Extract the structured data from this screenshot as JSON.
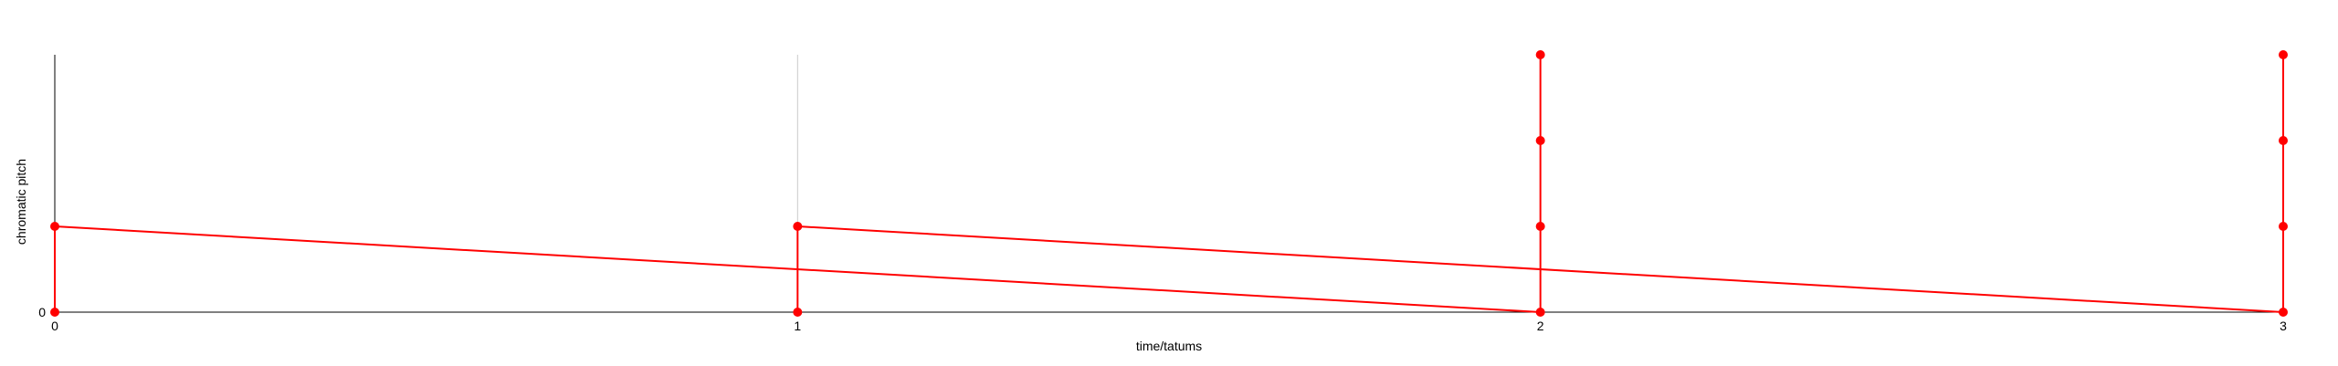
{
  "chart_data": {
    "type": "scatter",
    "title": "",
    "xlabel": "time/tatums",
    "ylabel": "chromatic pitch",
    "x_ticks": [
      "0",
      "1",
      "2",
      "3"
    ],
    "y_ticks": [
      "0"
    ],
    "xlim": [
      0,
      3
    ],
    "ylim": [
      0,
      3
    ],
    "grid": true,
    "points": [
      {
        "x": 0,
        "y": 0
      },
      {
        "x": 0,
        "y": 1
      },
      {
        "x": 1,
        "y": 0
      },
      {
        "x": 1,
        "y": 1
      },
      {
        "x": 2,
        "y": 0
      },
      {
        "x": 2,
        "y": 1
      },
      {
        "x": 2,
        "y": 2
      },
      {
        "x": 2,
        "y": 3
      },
      {
        "x": 3,
        "y": 0
      },
      {
        "x": 3,
        "y": 1
      },
      {
        "x": 3,
        "y": 2
      },
      {
        "x": 3,
        "y": 3
      }
    ],
    "segments": [
      {
        "from": [
          0,
          0
        ],
        "to": [
          0,
          1
        ]
      },
      {
        "from": [
          0,
          1
        ],
        "to": [
          2,
          0
        ]
      },
      {
        "from": [
          1,
          0
        ],
        "to": [
          1,
          1
        ]
      },
      {
        "from": [
          1,
          1
        ],
        "to": [
          3,
          0
        ]
      },
      {
        "from": [
          2,
          0
        ],
        "to": [
          2,
          3
        ]
      },
      {
        "from": [
          3,
          0
        ],
        "to": [
          3,
          3
        ]
      }
    ],
    "colors": {
      "mark": "#ff0000",
      "axis": "#000000",
      "grid": "#cccccc"
    }
  }
}
